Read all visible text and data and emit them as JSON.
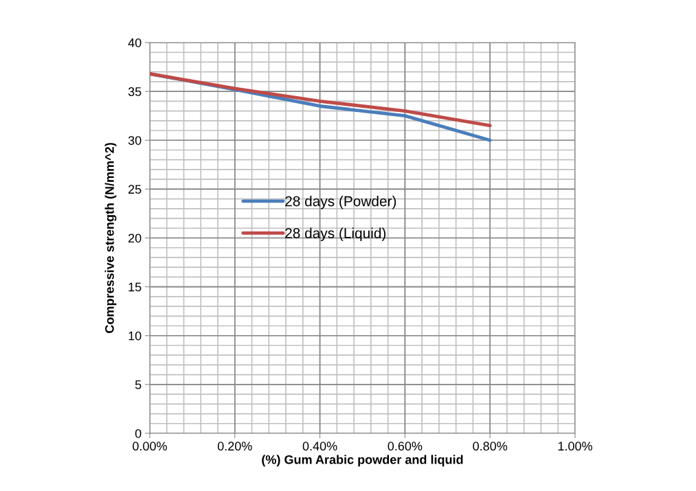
{
  "chart_data": {
    "type": "line",
    "xlabel": "(%) Gum Arabic powder and liquid",
    "ylabel": "Compressive strength (N/mm^2)",
    "x": [
      0,
      0.2,
      0.4,
      0.6,
      0.8
    ],
    "series": [
      {
        "name": "28 days (Powder)",
        "color": "#4a7ebb",
        "values": [
          36.8,
          35.2,
          33.5,
          32.5,
          30.0
        ]
      },
      {
        "name": "28 days (Liquid)",
        "color": "#be4b48",
        "values": [
          36.8,
          35.3,
          34.0,
          33.0,
          31.5
        ]
      }
    ],
    "xlim": [
      0,
      1
    ],
    "xticks": [
      {
        "value": 0,
        "label": "0.00%"
      },
      {
        "value": 0.2,
        "label": "0.20%"
      },
      {
        "value": 0.4,
        "label": "0.40%"
      },
      {
        "value": 0.6,
        "label": "0.60%"
      },
      {
        "value": 0.8,
        "label": "0.80%"
      },
      {
        "value": 1,
        "label": "1.00%"
      }
    ],
    "ylim": [
      0,
      40
    ],
    "yticks": [
      0,
      5,
      10,
      15,
      20,
      25,
      30,
      35,
      40
    ],
    "grid": true,
    "legend": "center",
    "marker": "none",
    "line_style": "solid"
  }
}
